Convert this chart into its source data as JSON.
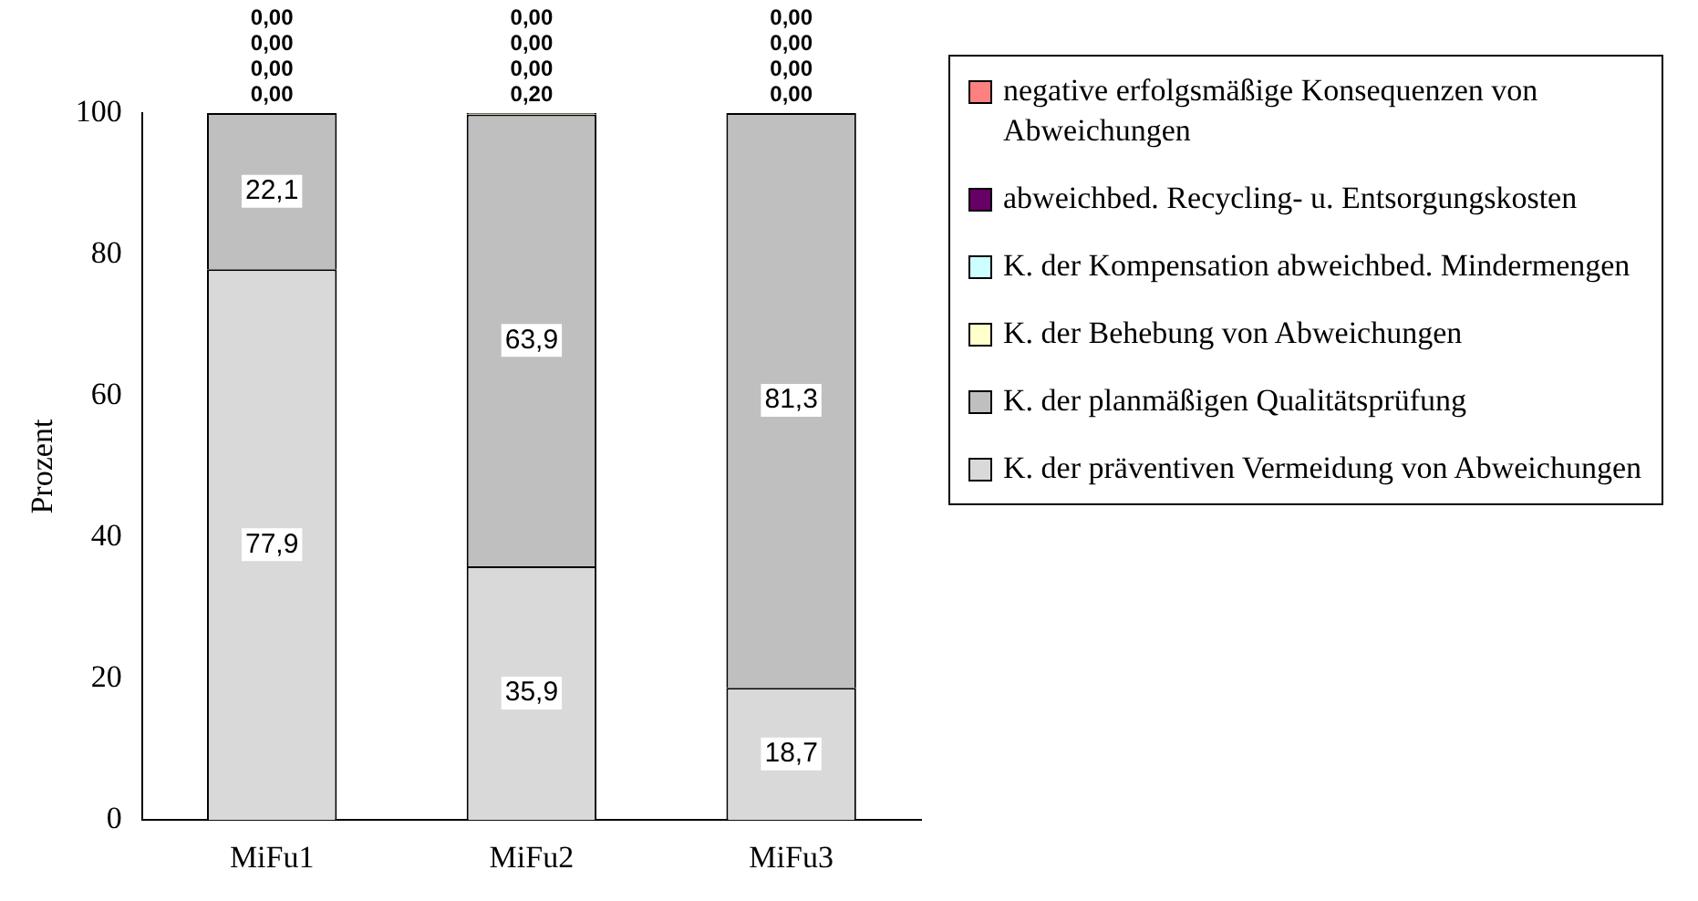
{
  "chart_data": {
    "type": "bar",
    "stacked": true,
    "ylabel": "Prozent",
    "categories": [
      "MiFu1",
      "MiFu2",
      "MiFu3"
    ],
    "ylim": [
      0,
      100
    ],
    "yticks": [
      0,
      20,
      40,
      60,
      80,
      100
    ],
    "legend": "right",
    "series": [
      {
        "name": "K. der präventiven Vermeidung von Abweichungen",
        "color": "#d9d9d9",
        "values": [
          77.9,
          35.9,
          18.7
        ],
        "value_labels": [
          "77,9",
          "35,9",
          "18,7"
        ]
      },
      {
        "name": "K. der planmäßigen Qualitätsprüfung",
        "color": "#bfbfbf",
        "values": [
          22.1,
          63.9,
          81.3
        ],
        "value_labels": [
          "22,1",
          "63,9",
          "81,3"
        ]
      },
      {
        "name": "K. der Behebung von Abweichungen",
        "color": "#ffffcc",
        "values": [
          0,
          0.2,
          0
        ],
        "value_labels": [
          "0,00",
          "0,20",
          "0,00"
        ]
      },
      {
        "name": "K. der Kompensation abweichbed. Mindermengen",
        "color": "#ccffff",
        "values": [
          0,
          0,
          0
        ],
        "value_labels": [
          "0,00",
          "0,00",
          "0,00"
        ]
      },
      {
        "name": "abweichbed. Recycling- u. Entsorgungskosten",
        "color": "#660066",
        "values": [
          0,
          0,
          0
        ],
        "value_labels": [
          "0,00",
          "0,00",
          "0,00"
        ]
      },
      {
        "name": "negative erfolgsmäßige Konsequenzen von Abweichungen",
        "color": "#ff8080",
        "values": [
          0,
          0,
          0
        ],
        "value_labels": [
          "0,00",
          "0,00",
          "0,00"
        ]
      }
    ]
  }
}
